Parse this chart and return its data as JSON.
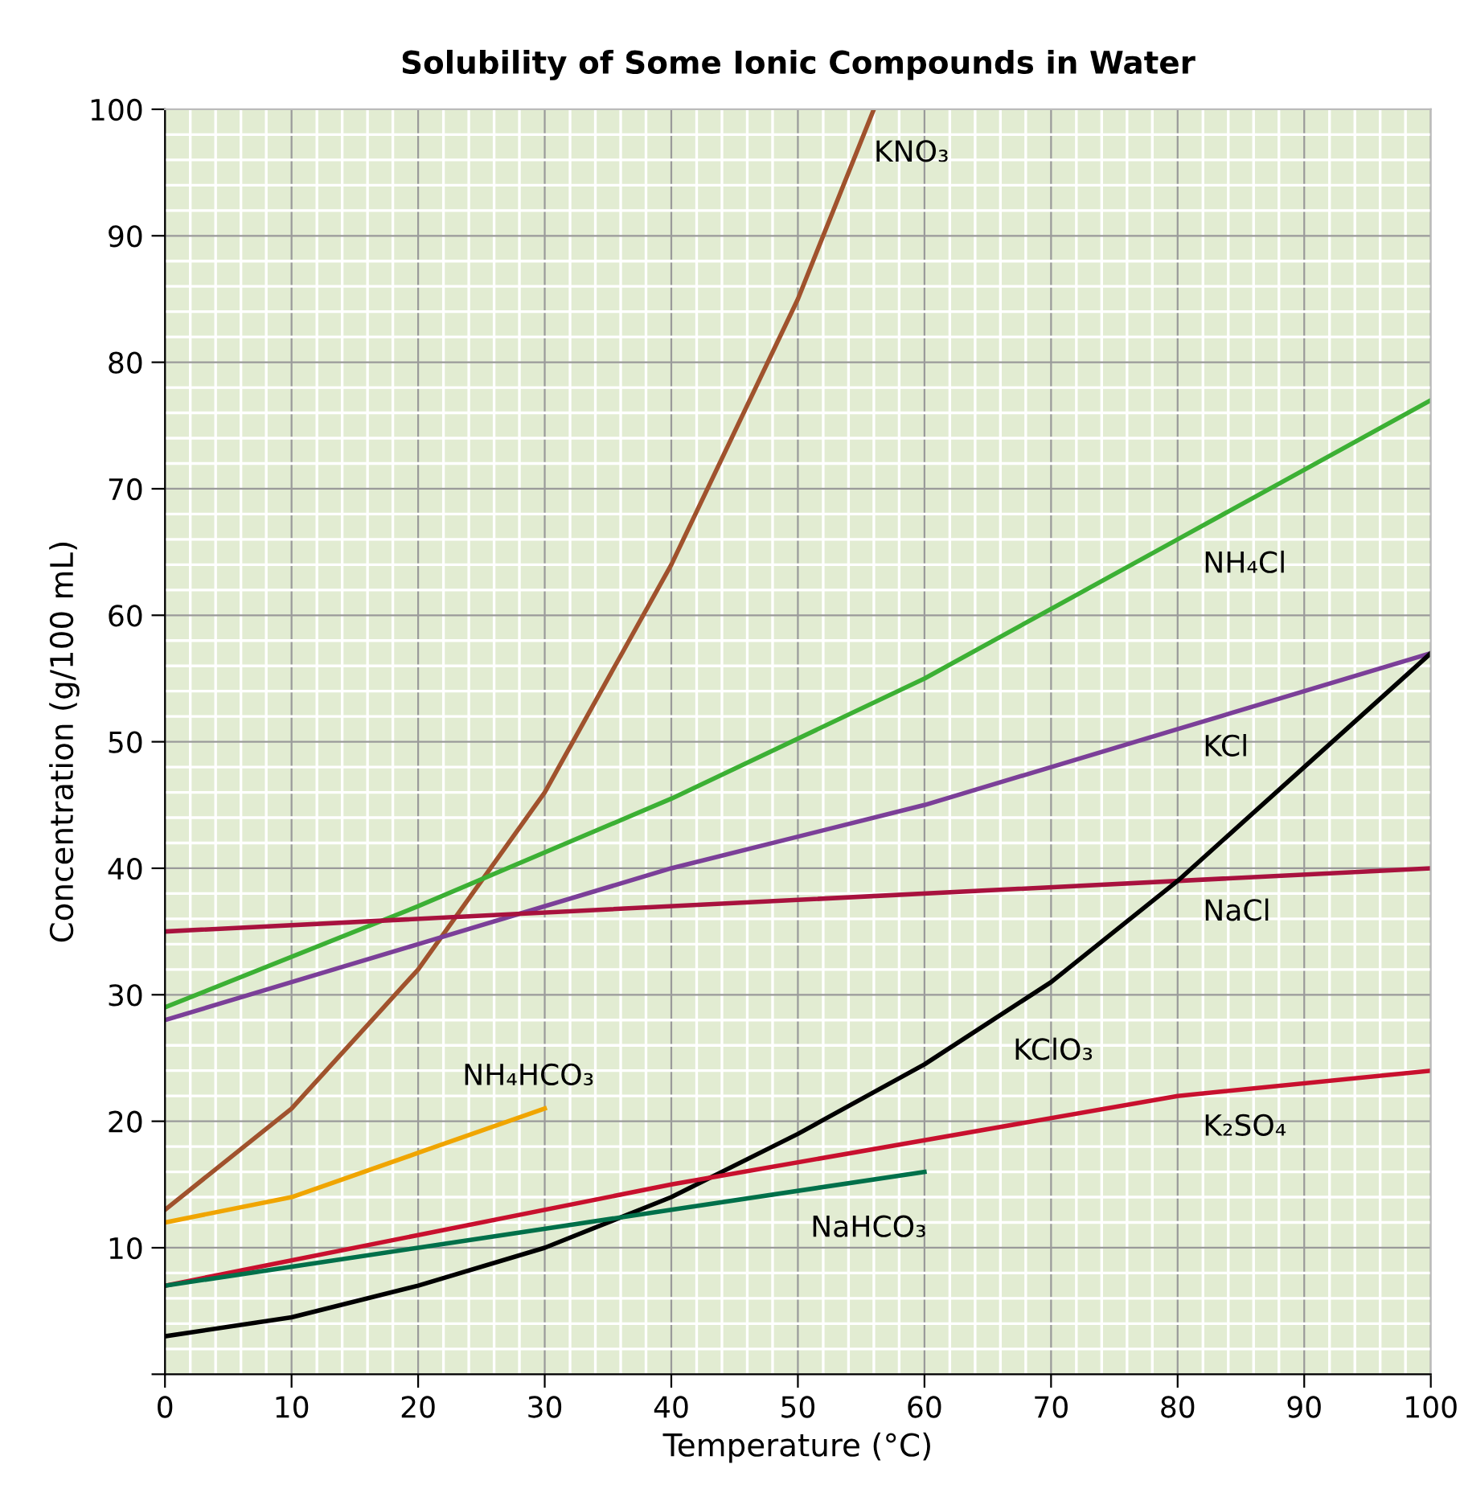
{
  "chart_data": {
    "type": "line",
    "title": "Solubility of Some Ionic Compounds in Water",
    "xlabel": "Temperature (°C)",
    "ylabel": "Concentration (g/100 mL)",
    "xlim": [
      0,
      100
    ],
    "ylim": [
      0,
      100
    ],
    "xticks": [
      0,
      10,
      20,
      30,
      40,
      50,
      60,
      70,
      80,
      90,
      100
    ],
    "yticks": [
      {
        "value": 0,
        "label": null
      },
      10,
      20,
      30,
      40,
      50,
      60,
      70,
      80,
      90,
      100
    ],
    "grid": true,
    "legend": false,
    "marker": "none",
    "line_style": "solid",
    "series": [
      {
        "name": "KNO₃",
        "color": "#a0522d",
        "x": [
          0,
          10,
          20,
          30,
          40,
          50,
          56
        ],
        "values": [
          13,
          21,
          32,
          46,
          64,
          85,
          100
        ]
      },
      {
        "name": "NH₄Cl",
        "color": "#3cb034",
        "x": [
          0,
          20,
          40,
          60,
          80,
          100
        ],
        "values": [
          29,
          37,
          45.5,
          55,
          66,
          77
        ]
      },
      {
        "name": "KCl",
        "color": "#7b3f98",
        "x": [
          0,
          20,
          40,
          60,
          80,
          100
        ],
        "values": [
          28,
          34,
          40,
          45,
          51,
          57
        ]
      },
      {
        "name": "NaCl",
        "color": "#a8123e",
        "x": [
          0,
          50,
          100
        ],
        "values": [
          35,
          37.5,
          40
        ]
      },
      {
        "name": "KClO₃",
        "color": "#000000",
        "x": [
          0,
          10,
          20,
          30,
          40,
          50,
          60,
          70,
          80,
          90,
          100
        ],
        "values": [
          3,
          4.5,
          7,
          10,
          14,
          19,
          24.5,
          31,
          39,
          48,
          57
        ]
      },
      {
        "name": "K₂SO₄",
        "color": "#c8102e",
        "x": [
          0,
          20,
          40,
          60,
          80,
          100
        ],
        "values": [
          7,
          11,
          15,
          18.5,
          22,
          24
        ]
      },
      {
        "name": "NaHCO₃",
        "color": "#00704a",
        "x": [
          0,
          20,
          40,
          60
        ],
        "values": [
          7,
          10,
          13,
          16
        ]
      },
      {
        "name": "NH₄HCO₃",
        "color": "#f0a500",
        "x": [
          0,
          10,
          20,
          30
        ],
        "values": [
          12,
          14,
          17.5,
          21
        ]
      }
    ]
  }
}
